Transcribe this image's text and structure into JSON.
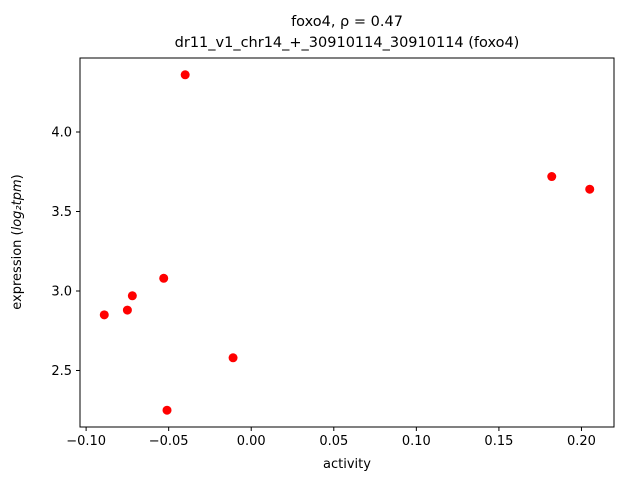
{
  "figure": {
    "title_line1": "foxo4, ρ = 0.47",
    "title_line2": "dr11_v1_chr14_+_30910114_30910114 (foxo4)",
    "xlabel": "activity",
    "ylabel_prefix": "expression (",
    "ylabel_math": "log₂tpm",
    "ylabel_suffix": ")"
  },
  "chart_data": {
    "type": "scatter",
    "title": "foxo4, ρ = 0.47",
    "subtitle": "dr11_v1_chr14_+_30910114_30910114 (foxo4)",
    "xlabel": "activity",
    "ylabel": "expression (log₂tpm)",
    "points": [
      {
        "x": -0.089,
        "y": 2.85
      },
      {
        "x": -0.075,
        "y": 2.88
      },
      {
        "x": -0.072,
        "y": 2.97
      },
      {
        "x": -0.053,
        "y": 3.08
      },
      {
        "x": -0.051,
        "y": 2.25
      },
      {
        "x": -0.04,
        "y": 4.36
      },
      {
        "x": -0.011,
        "y": 2.58
      },
      {
        "x": 0.182,
        "y": 3.72
      },
      {
        "x": 0.205,
        "y": 3.64
      }
    ],
    "xlim": [
      -0.1037,
      0.2197
    ],
    "ylim": [
      2.1445,
      4.4655
    ],
    "xticks": {
      "values": [
        -0.1,
        -0.05,
        0.0,
        0.05,
        0.1,
        0.15,
        0.2
      ],
      "labels": [
        "−0.10",
        "−0.05",
        "0.00",
        "0.05",
        "0.10",
        "0.15",
        "0.20"
      ]
    },
    "yticks": {
      "values": [
        2.5,
        3.0,
        3.5,
        4.0
      ],
      "labels": [
        "2.5",
        "3.0",
        "3.5",
        "4.0"
      ]
    },
    "grid": false,
    "legend": null,
    "marker_color": "#ff0000",
    "marker_radius_px": 4.5,
    "axis_color": "#000000"
  }
}
